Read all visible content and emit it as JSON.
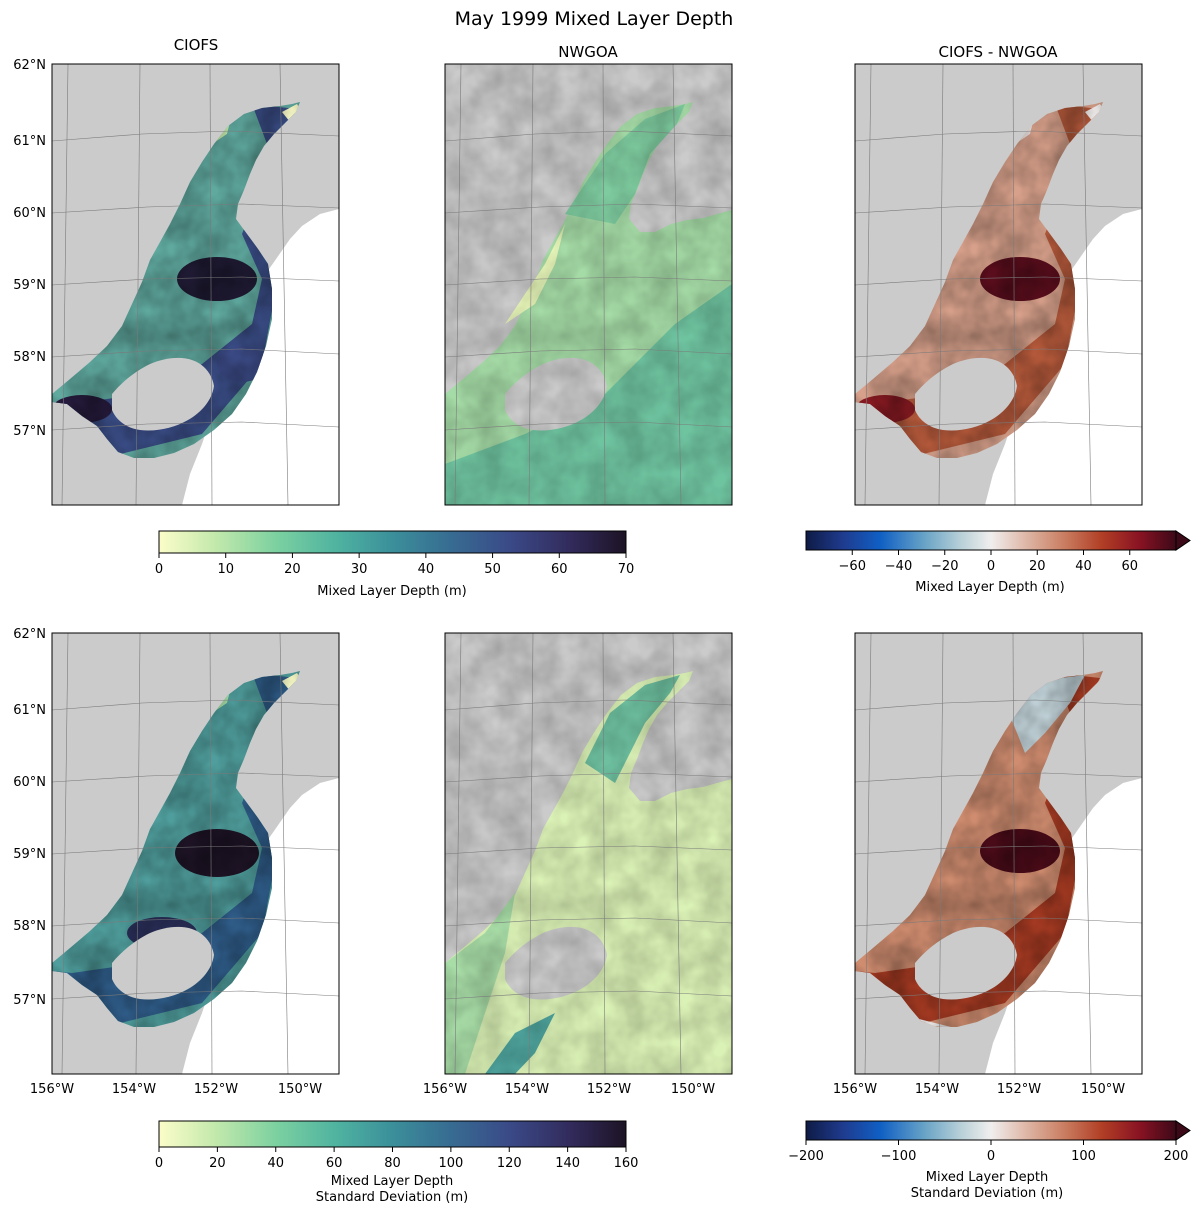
{
  "figure": {
    "title": "May 1999 Mixed Layer Depth",
    "columns": [
      "CIOFS",
      "NWGOA",
      "CIOFS - NWGOA"
    ],
    "lat_labels": [
      "62°N",
      "61°N",
      "60°N",
      "59°N",
      "58°N",
      "57°N"
    ],
    "lon_labels": [
      "156°W",
      "154°W",
      "152°W",
      "150°W"
    ]
  },
  "map_colors": {
    "land": "#cbcbcb",
    "ocean_outside": "#ffffff",
    "gridline": "#7a7a7a"
  },
  "colorbars": {
    "mean": {
      "ticks": [
        "0",
        "10",
        "20",
        "30",
        "40",
        "50",
        "60",
        "70"
      ],
      "label": "Mixed Layer Depth (m)",
      "range": [
        0,
        70
      ],
      "colors": [
        "#fcfdc9",
        "#c3e9ac",
        "#7cd1a0",
        "#4fb3a0",
        "#3b8f9a",
        "#376d92",
        "#3a4a88",
        "#322b5c",
        "#1d1325"
      ]
    },
    "mean_diff": {
      "ticks": [
        "−60",
        "−40",
        "−20",
        "0",
        "20",
        "40",
        "60"
      ],
      "label": "Mixed Layer Depth (m)",
      "range": [
        -80,
        80
      ],
      "extend": "max",
      "colors": [
        "#0f1b45",
        "#1f3b8e",
        "#0f5fc4",
        "#68a3c6",
        "#b9d1d8",
        "#f0eeee",
        "#ddb4a3",
        "#c97c60",
        "#b13e25",
        "#891323",
        "#3c0918"
      ]
    },
    "std": {
      "ticks": [
        "0",
        "20",
        "40",
        "60",
        "80",
        "100",
        "120",
        "140",
        "160"
      ],
      "label_line1": "Mixed Layer Depth",
      "label_line2": "Standard Deviation (m)",
      "range": [
        0,
        160
      ],
      "colors": [
        "#fcfdc9",
        "#c3e9ac",
        "#7cd1a0",
        "#4fb3a0",
        "#3b8f9a",
        "#376d92",
        "#3a4a88",
        "#322b5c",
        "#1d1325"
      ]
    },
    "std_diff": {
      "ticks": [
        "−200",
        "−100",
        "0",
        "100",
        "200"
      ],
      "label_line1": "Mixed Layer Depth",
      "label_line2": "Standard Deviation (m)",
      "range": [
        -200,
        200
      ],
      "extend": "max",
      "colors": [
        "#0f1b45",
        "#1f3b8e",
        "#0f5fc4",
        "#68a3c6",
        "#b9d1d8",
        "#f0eeee",
        "#ddb4a3",
        "#c97c60",
        "#b13e25",
        "#891323",
        "#3c0918"
      ]
    }
  }
}
